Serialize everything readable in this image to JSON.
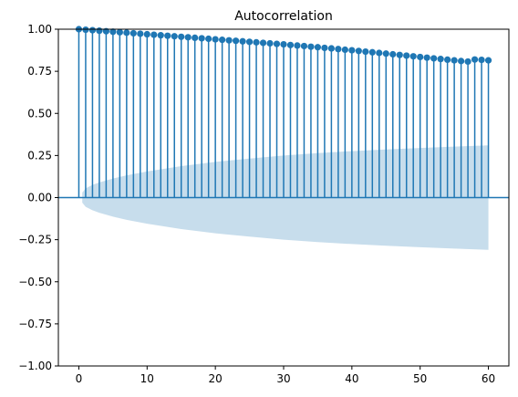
{
  "chart_data": {
    "type": "stem",
    "title": "Autocorrelation",
    "xlabel": "",
    "ylabel": "",
    "xlim": [
      -3,
      63
    ],
    "ylim": [
      -1.0,
      1.0
    ],
    "xticks": [
      0,
      10,
      20,
      30,
      40,
      50,
      60
    ],
    "xtick_labels": [
      "0",
      "10",
      "20",
      "30",
      "40",
      "50",
      "60"
    ],
    "yticks": [
      -1.0,
      -0.75,
      -0.5,
      -0.25,
      0.0,
      0.25,
      0.5,
      0.75,
      1.0
    ],
    "ytick_labels": [
      "−1.00",
      "−0.75",
      "−0.50",
      "−0.25",
      "0.00",
      "0.25",
      "0.50",
      "0.75",
      "1.00"
    ],
    "grid": false,
    "lags": [
      0,
      1,
      2,
      3,
      4,
      5,
      6,
      7,
      8,
      9,
      10,
      11,
      12,
      13,
      14,
      15,
      16,
      17,
      18,
      19,
      20,
      21,
      22,
      23,
      24,
      25,
      26,
      27,
      28,
      29,
      30,
      31,
      32,
      33,
      34,
      35,
      36,
      37,
      38,
      39,
      40,
      41,
      42,
      43,
      44,
      45,
      46,
      47,
      48,
      49,
      50,
      51,
      52,
      53,
      54,
      55,
      56,
      57,
      58,
      59,
      60
    ],
    "acf": [
      1.0,
      0.997,
      0.994,
      0.991,
      0.988,
      0.985,
      0.982,
      0.979,
      0.976,
      0.973,
      0.97,
      0.967,
      0.964,
      0.961,
      0.958,
      0.955,
      0.952,
      0.949,
      0.946,
      0.943,
      0.94,
      0.937,
      0.934,
      0.931,
      0.928,
      0.925,
      0.922,
      0.919,
      0.916,
      0.913,
      0.91,
      0.906,
      0.903,
      0.9,
      0.896,
      0.893,
      0.889,
      0.886,
      0.882,
      0.878,
      0.875,
      0.871,
      0.867,
      0.863,
      0.859,
      0.855,
      0.851,
      0.847,
      0.843,
      0.839,
      0.835,
      0.831,
      0.827,
      0.823,
      0.819,
      0.815,
      0.811,
      0.808,
      0.82,
      0.818,
      0.815
    ],
    "confidence_band": {
      "lags": [
        0.5,
        1,
        2,
        3,
        5,
        7,
        10,
        15,
        20,
        25,
        30,
        35,
        40,
        45,
        50,
        55,
        60
      ],
      "upper": [
        0.03,
        0.055,
        0.075,
        0.09,
        0.113,
        0.132,
        0.155,
        0.187,
        0.212,
        0.232,
        0.25,
        0.264,
        0.276,
        0.286,
        0.295,
        0.303,
        0.31
      ],
      "lower": [
        -0.03,
        -0.055,
        -0.075,
        -0.09,
        -0.113,
        -0.132,
        -0.155,
        -0.187,
        -0.212,
        -0.232,
        -0.25,
        -0.264,
        -0.276,
        -0.286,
        -0.295,
        -0.303,
        -0.31
      ]
    },
    "colors": {
      "stem": "#1f77b4",
      "marker": "#1f77b4",
      "baseline": "#1f77b4",
      "band": "#1f77b4"
    }
  }
}
